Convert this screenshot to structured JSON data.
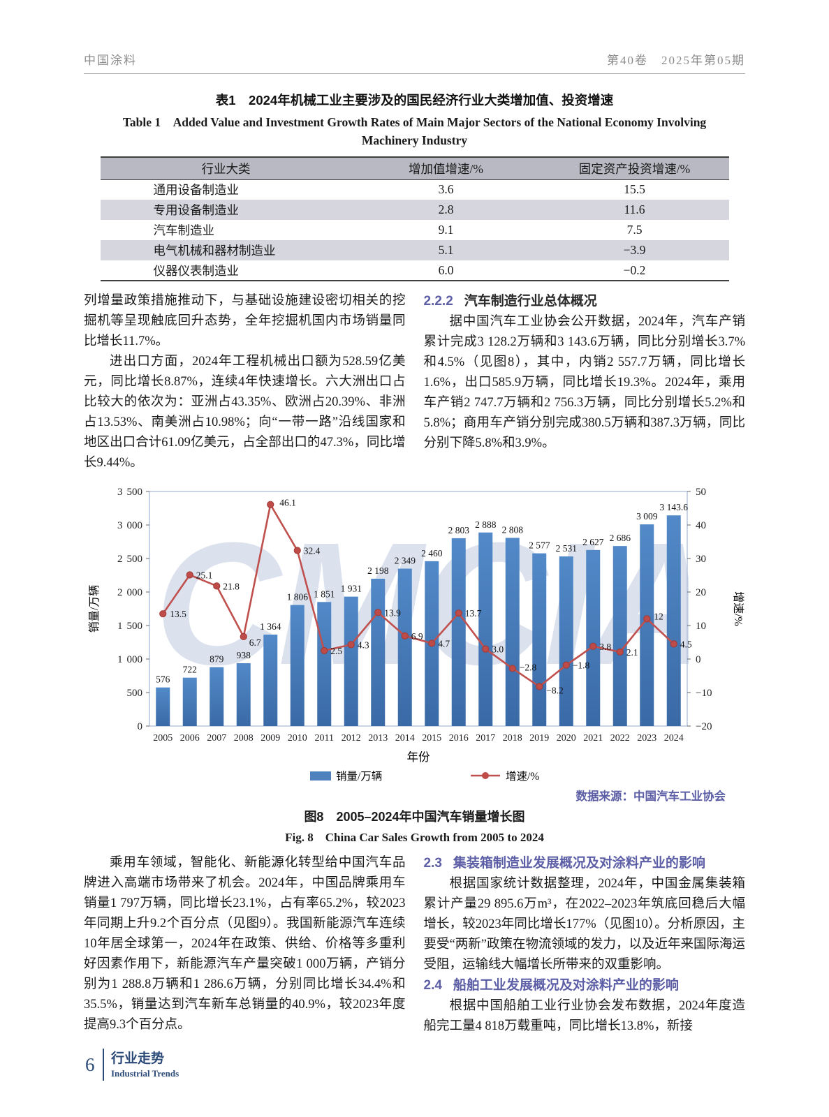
{
  "header": {
    "journal": "中国涂料",
    "issue": "第40卷　2025年第05期"
  },
  "table": {
    "title_zh": "表1　2024年机械工业主要涉及的国民经济行业大类增加值、投资增速",
    "title_en": "Table 1　Added Value and Investment Growth Rates of Main Major Sectors of the National Economy Involving Machinery Industry",
    "columns": [
      "行业大类",
      "增加值增速/%",
      "固定资产投资增速/%"
    ],
    "rows": [
      [
        "通用设备制造业",
        "3.6",
        "15.5"
      ],
      [
        "专用设备制造业",
        "2.8",
        "11.6"
      ],
      [
        "汽车制造业",
        "9.1",
        "7.5"
      ],
      [
        "电气机械和器材制造业",
        "5.1",
        "−3.9"
      ],
      [
        "仪器仪表制造业",
        "6.0",
        "−0.2"
      ]
    ]
  },
  "top_left": {
    "p1": "列增量政策措施推动下，与基础设施建设密切相关的挖掘机等呈现触底回升态势，全年挖掘机国内市场销量同比增长11.7%。",
    "p2": "进出口方面，2024年工程机械出口额为528.59亿美元，同比增长8.87%，连续4年快速增长。六大洲出口占比较大的依次为：亚洲占43.35%、欧洲占20.39%、非洲占13.53%、南美洲占10.98%；向“一带一路”沿线国家和地区出口合计61.09亿美元，占全部出口的47.3%，同比增长9.44%。"
  },
  "top_right": {
    "heading_num": "2.2.2",
    "heading_text": "汽车制造行业总体概况",
    "p1": "据中国汽车工业协会公开数据，2024年，汽车产销累计完成3 128.2万辆和3 143.6万辆，同比分别增长3.7%和4.5%（见图8），其中，内销2 557.7万辆，同比增长1.6%，出口585.9万辆，同比增长19.3%。2024年，乘用车产销2 747.7万辆和2 756.3万辆，同比分别增长5.2%和5.8%；商用车产销分别完成380.5万辆和387.3万辆，同比分别下降5.8%和3.9%。"
  },
  "chart_data": {
    "type": "bar+line",
    "categories": [
      "2005",
      "2006",
      "2007",
      "2008",
      "2009",
      "2010",
      "2011",
      "2012",
      "2013",
      "2014",
      "2015",
      "2016",
      "2017",
      "2018",
      "2019",
      "2020",
      "2021",
      "2022",
      "2023",
      "2024"
    ],
    "series": [
      {
        "name": "销量/万辆",
        "type": "bar",
        "axis": "left",
        "values": [
          576,
          722,
          879,
          938,
          1364,
          1806,
          1851,
          1931,
          2198,
          2349,
          2460,
          2803,
          2888,
          2808,
          2577,
          2531,
          2627,
          2686,
          3009,
          3143.6
        ],
        "labels": [
          "576",
          "722",
          "879",
          "938",
          "1 364",
          "1 806",
          "1 851",
          "1 931",
          "2 198",
          "2 349",
          "2 460",
          "2 803",
          "2 888",
          "2 808",
          "2 577",
          "2 531",
          "2 627",
          "2 686",
          "3 009",
          "3 143.6"
        ],
        "color": "#4F81BD"
      },
      {
        "name": "增速/%",
        "type": "line",
        "axis": "right",
        "values": [
          13.5,
          25.1,
          21.8,
          6.7,
          46.1,
          32.4,
          2.5,
          4.3,
          13.9,
          6.9,
          4.7,
          13.7,
          3.0,
          -2.8,
          -8.2,
          -1.8,
          3.8,
          2.1,
          12,
          4.5
        ],
        "labels": [
          "13.5",
          "25.1",
          "21.8",
          "6.7",
          "46.1",
          "32.4",
          "2.5",
          "4.3",
          "13.9",
          "6.9",
          "4.7",
          "13.7",
          "3.0",
          "−2.8",
          "−8.2",
          "−1.8",
          "3.8",
          "2.1",
          "12",
          "4.5"
        ],
        "color": "#C0504D"
      }
    ],
    "left_axis": {
      "label": "销量/万辆",
      "min": 0,
      "max": 3500,
      "step": 500
    },
    "right_axis": {
      "label": "增速/%",
      "min": -20,
      "max": 50,
      "step": 10
    },
    "xlabel": "年份",
    "grid": false,
    "legend_position": "bottom"
  },
  "figure": {
    "source": "数据来源：中国汽车工业协会",
    "caption_zh": "图8　2005–2024年中国汽车销量增长图",
    "caption_en": "Fig. 8　China Car Sales Growth from 2005 to 2024"
  },
  "bottom_left": {
    "p1": "乘用车领域，智能化、新能源化转型给中国汽车品牌进入高端市场带来了机会。2024年，中国品牌乘用车销量1 797万辆，同比增长23.1%，占有率65.2%，较2023年同期上升9.2个百分点（见图9）。我国新能源汽车连续10年居全球第一，2024年在政策、供给、价格等多重利好因素作用下，新能源汽车产量突破1 000万辆，产销分别为1 288.8万辆和1 286.6万辆，分别同比增长34.4%和35.5%，销量达到汽车新车总销量的40.9%，较2023年度提高9.3个百分点。"
  },
  "bottom_right": {
    "s23_num": "2.3",
    "s23_title": "集装箱制造业发展概况及对涂料产业的影响",
    "s23_p": "根据国家统计数据整理，2024年，中国金属集装箱累计产量29 895.6万m³，在2022–2023年筑底回稳后大幅增长，较2023年同比增长177%（见图10）。分析原因，主要受“两新”政策在物流领域的发力，以及近年来国际海运受阻，运输线大幅增长所带来的双重影响。",
    "s24_num": "2.4",
    "s24_title": "船舶工业发展概况及对涂料产业的影响",
    "s24_p": "根据中国船舶工业行业协会发布数据，2024年度造船完工量4 818万载重吨，同比增长13.8%，新接"
  },
  "watermark": "CMCIA",
  "footer": {
    "page": "6",
    "section_zh": "行业走势",
    "section_en": "Industrial Trends"
  },
  "colors": {
    "bar": "#4F81BD",
    "line": "#C0504D",
    "heading": "#5c5ea6",
    "footer": "#2c4a78",
    "table_header_bg": "#b9b9c3",
    "table_band_bg": "#d6d6de"
  }
}
